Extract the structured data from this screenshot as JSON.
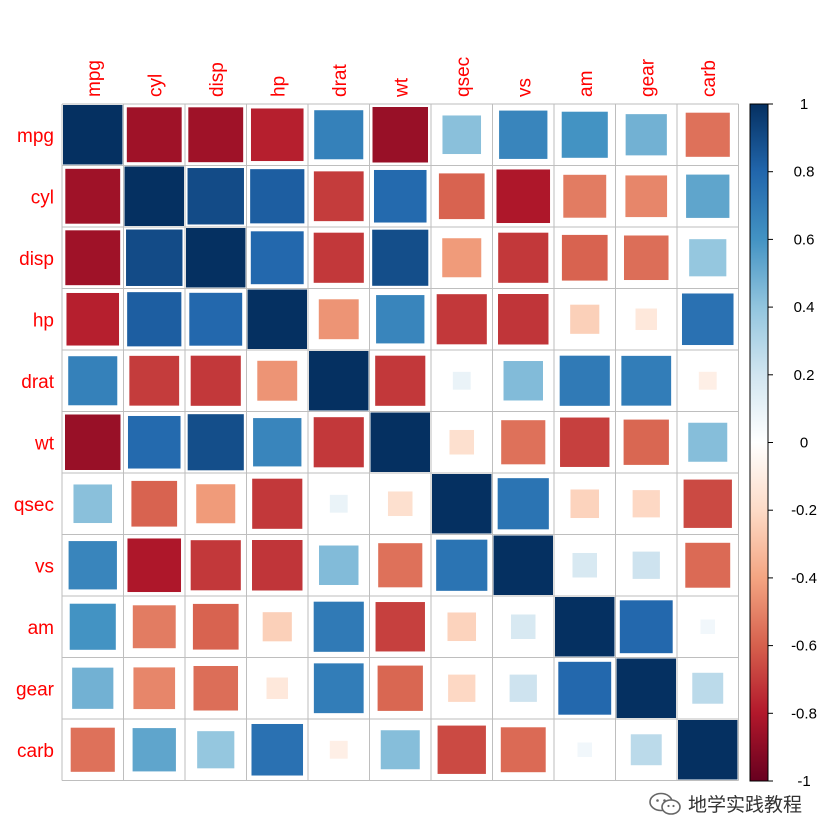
{
  "chart_data": {
    "type": "heatmap",
    "title": "",
    "variables": [
      "mpg",
      "cyl",
      "disp",
      "hp",
      "drat",
      "wt",
      "qsec",
      "vs",
      "am",
      "gear",
      "carb"
    ],
    "matrix": [
      [
        1.0,
        -0.85,
        -0.85,
        -0.78,
        0.68,
        -0.87,
        0.42,
        0.66,
        0.6,
        0.48,
        -0.55
      ],
      [
        -0.85,
        1.0,
        0.9,
        0.83,
        -0.7,
        0.78,
        -0.59,
        -0.81,
        -0.52,
        -0.49,
        0.53
      ],
      [
        -0.85,
        0.9,
        1.0,
        0.79,
        -0.71,
        0.89,
        -0.43,
        -0.71,
        -0.59,
        -0.56,
        0.39
      ],
      [
        -0.78,
        0.83,
        0.79,
        1.0,
        -0.45,
        0.66,
        -0.71,
        -0.72,
        -0.24,
        -0.13,
        0.75
      ],
      [
        0.68,
        -0.7,
        -0.71,
        -0.45,
        1.0,
        -0.71,
        0.09,
        0.44,
        0.71,
        0.7,
        -0.09
      ],
      [
        -0.87,
        0.78,
        0.89,
        0.66,
        -0.71,
        1.0,
        -0.17,
        -0.55,
        -0.69,
        -0.58,
        0.43
      ],
      [
        0.42,
        -0.59,
        -0.43,
        -0.71,
        0.09,
        -0.17,
        1.0,
        0.74,
        -0.23,
        -0.21,
        -0.66
      ],
      [
        0.66,
        -0.81,
        -0.71,
        -0.72,
        0.44,
        -0.55,
        0.74,
        1.0,
        0.17,
        0.21,
        -0.57
      ],
      [
        0.6,
        -0.52,
        -0.59,
        -0.24,
        0.71,
        -0.69,
        -0.23,
        0.17,
        1.0,
        0.79,
        0.06
      ],
      [
        0.48,
        -0.49,
        -0.56,
        -0.13,
        0.7,
        -0.58,
        -0.21,
        0.21,
        0.79,
        1.0,
        0.27
      ],
      [
        -0.55,
        0.53,
        0.39,
        0.75,
        -0.09,
        0.43,
        -0.66,
        -0.57,
        0.06,
        0.27,
        1.0
      ]
    ],
    "color_scale": {
      "range": [
        -1,
        1
      ],
      "ticks": [
        "1",
        "0.8",
        "0.6",
        "0.4",
        "0.2",
        "0",
        "-0.2",
        "-0.4",
        "-0.6",
        "-0.8",
        "-1"
      ],
      "tick_values": [
        1,
        0.8,
        0.6,
        0.4,
        0.2,
        0,
        -0.2,
        -0.4,
        -0.6,
        -0.8,
        -1
      ],
      "stops": [
        "#67001F",
        "#B2182B",
        "#D6604D",
        "#F4A582",
        "#FDDBC7",
        "#FFFFFF",
        "#D1E5F0",
        "#92C5DE",
        "#4393C3",
        "#2166AC",
        "#053061"
      ]
    },
    "label_color": "#FF0000",
    "grid_color": "#BEBEBE"
  },
  "watermark": {
    "text": "地学实践教程",
    "icon": "wechat-icon"
  }
}
